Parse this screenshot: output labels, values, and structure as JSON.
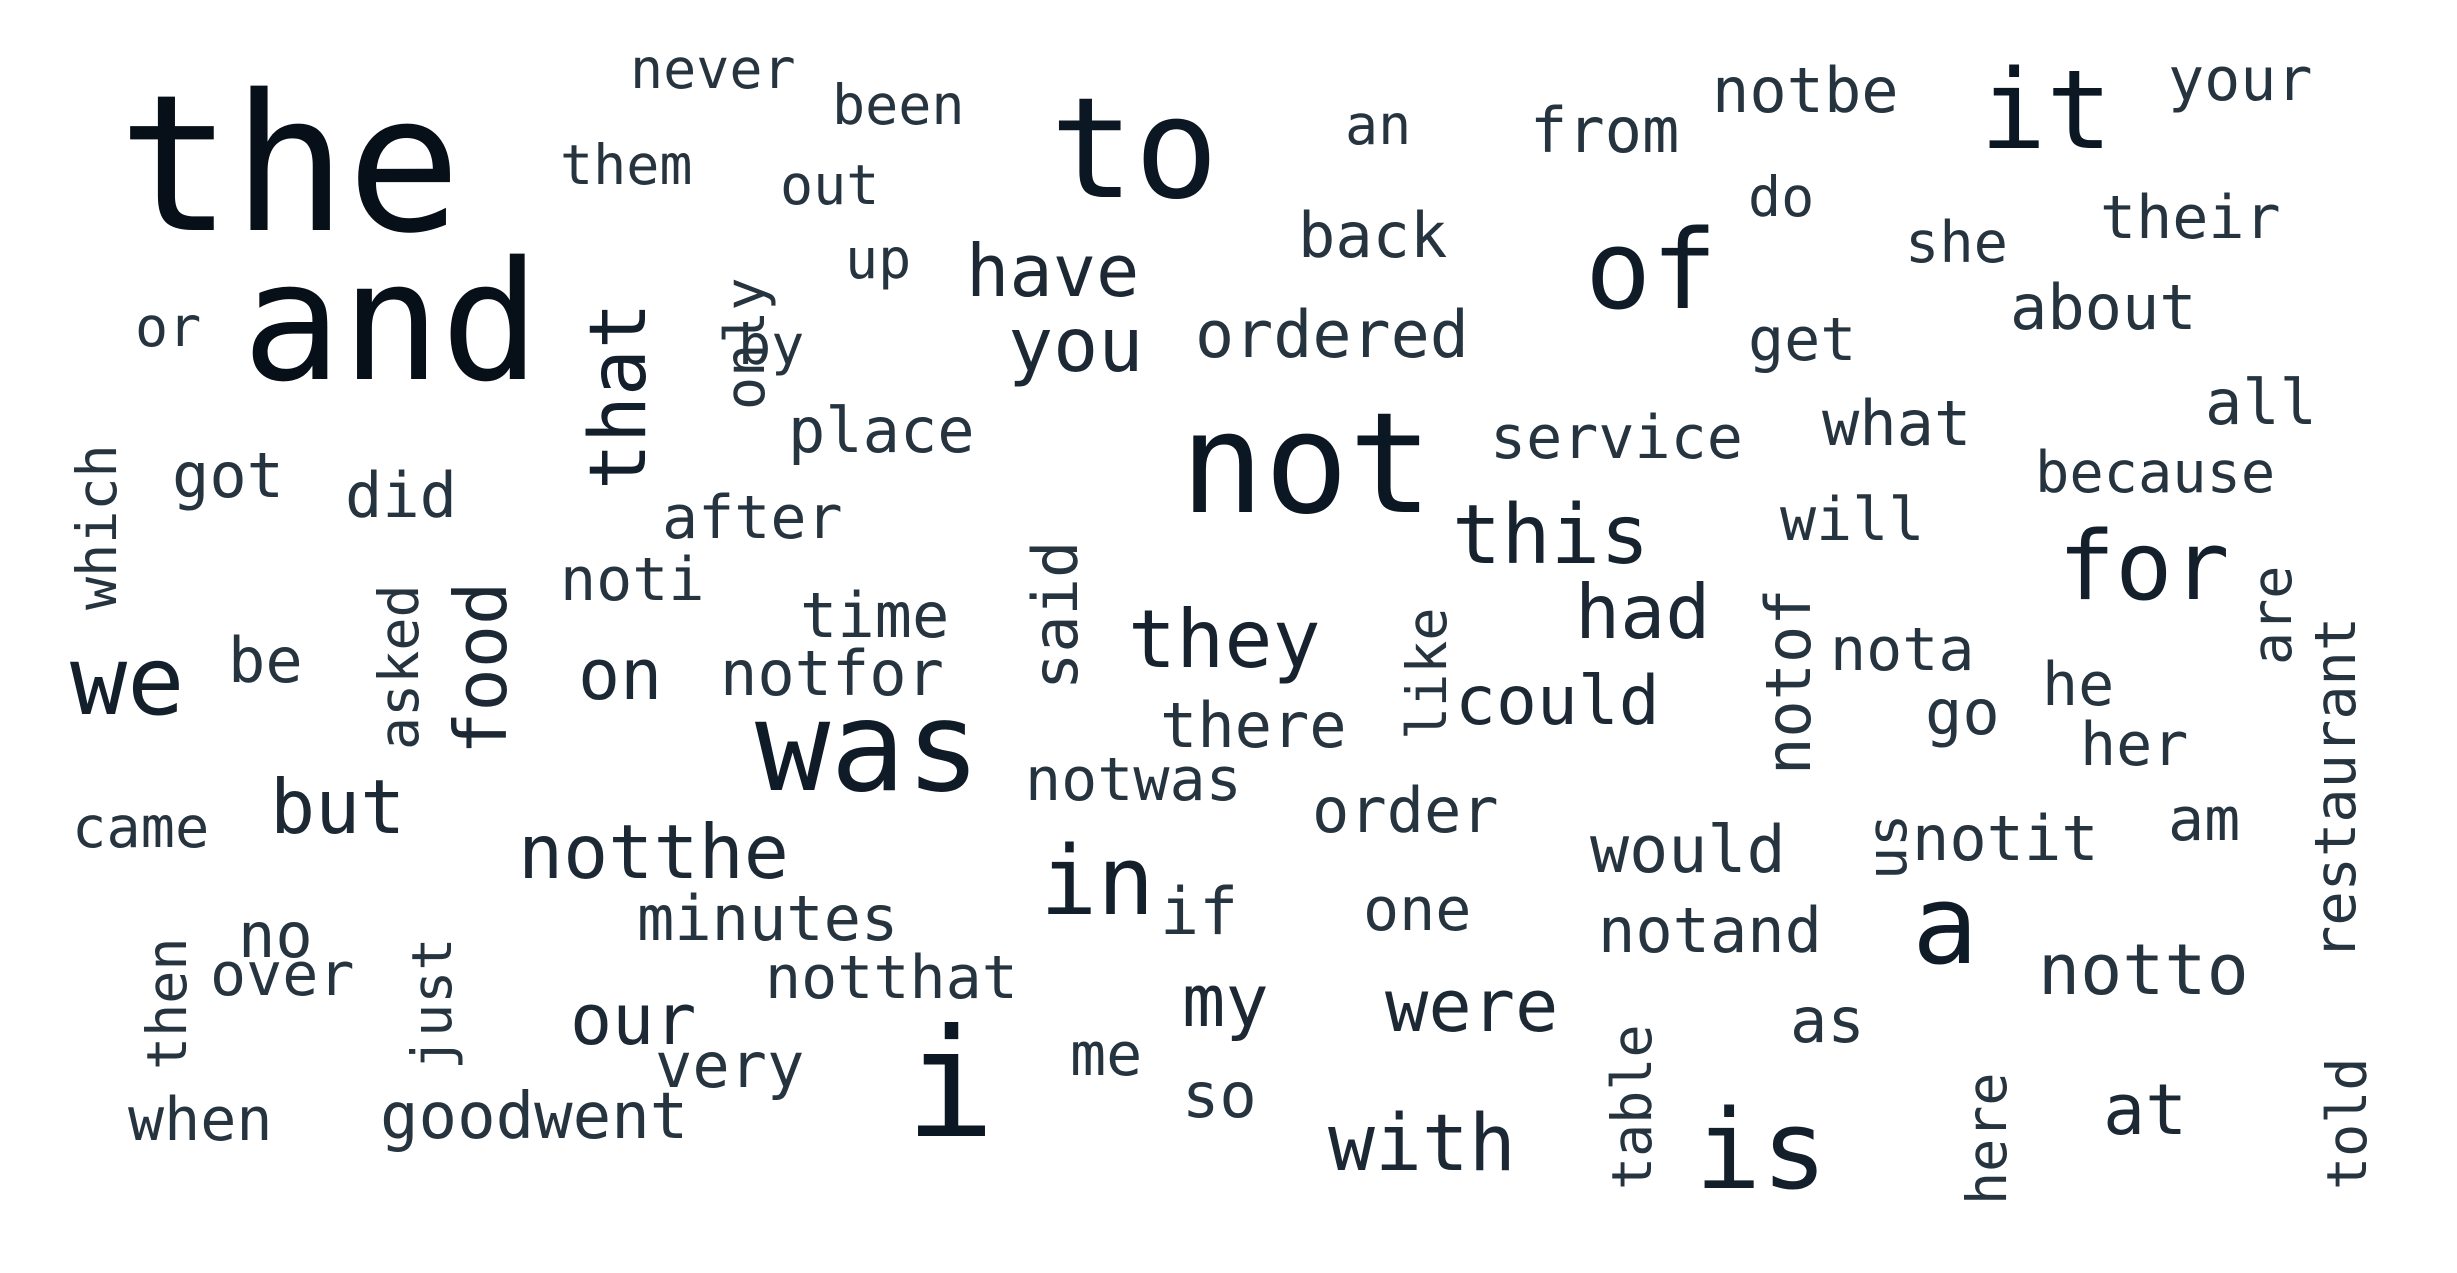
{
  "words": [
    {
      "text": "the",
      "color": "#070f18"
    },
    {
      "text": "and",
      "color": "#070f18"
    },
    {
      "text": "to",
      "color": "#0b1722"
    },
    {
      "text": "it",
      "color": "#0b1722"
    },
    {
      "text": "not",
      "color": "#0b1722"
    },
    {
      "text": "was",
      "color": "#0f1b27"
    },
    {
      "text": "i",
      "color": "#0b1722"
    },
    {
      "text": "a",
      "color": "#0f1b27"
    },
    {
      "text": "of",
      "color": "#0f1b27"
    },
    {
      "text": "in",
      "color": "#13202c"
    },
    {
      "text": "we",
      "color": "#13202c"
    },
    {
      "text": "is",
      "color": "#13202c"
    },
    {
      "text": "for",
      "color": "#13202c"
    },
    {
      "text": "that",
      "color": "#13202c"
    },
    {
      "text": "this",
      "color": "#16232f"
    },
    {
      "text": "they",
      "color": "#16232f"
    },
    {
      "text": "never",
      "color": "#26343f"
    },
    {
      "text": "been",
      "color": "#26343f"
    },
    {
      "text": "them",
      "color": "#26343f"
    },
    {
      "text": "out",
      "color": "#26343f"
    },
    {
      "text": "an",
      "color": "#26343f"
    },
    {
      "text": "from",
      "color": "#26343f"
    },
    {
      "text": "notbe",
      "color": "#26343f"
    },
    {
      "text": "your",
      "color": "#26343f"
    },
    {
      "text": "do",
      "color": "#26343f"
    },
    {
      "text": "back",
      "color": "#26343f"
    },
    {
      "text": "she",
      "color": "#26343f"
    },
    {
      "text": "their",
      "color": "#26343f"
    },
    {
      "text": "up",
      "color": "#26343f"
    },
    {
      "text": "have",
      "color": "#1c2935"
    },
    {
      "text": "only",
      "color": "#26343f"
    },
    {
      "text": "or",
      "color": "#26343f"
    },
    {
      "text": "by",
      "color": "#26343f"
    },
    {
      "text": "you",
      "color": "#1c2935"
    },
    {
      "text": "ordered",
      "color": "#26343f"
    },
    {
      "text": "get",
      "color": "#26343f"
    },
    {
      "text": "about",
      "color": "#26343f"
    },
    {
      "text": "which",
      "color": "#26343f"
    },
    {
      "text": "place",
      "color": "#26343f"
    },
    {
      "text": "service",
      "color": "#26343f"
    },
    {
      "text": "what",
      "color": "#26343f"
    },
    {
      "text": "all",
      "color": "#26343f"
    },
    {
      "text": "got",
      "color": "#26343f"
    },
    {
      "text": "because",
      "color": "#26343f"
    },
    {
      "text": "did",
      "color": "#26343f"
    },
    {
      "text": "after",
      "color": "#26343f"
    },
    {
      "text": "will",
      "color": "#26343f"
    },
    {
      "text": "asked",
      "color": "#26343f"
    },
    {
      "text": "food",
      "color": "#1c2935"
    },
    {
      "text": "noti",
      "color": "#26343f"
    },
    {
      "text": "said",
      "color": "#26343f"
    },
    {
      "text": "are",
      "color": "#26343f"
    },
    {
      "text": "restaurant",
      "color": "#26343f"
    },
    {
      "text": "had",
      "color": "#1c2935"
    },
    {
      "text": "notof",
      "color": "#26343f"
    },
    {
      "text": "time",
      "color": "#26343f"
    },
    {
      "text": "like",
      "color": "#26343f"
    },
    {
      "text": "nota",
      "color": "#26343f"
    },
    {
      "text": "be",
      "color": "#26343f"
    },
    {
      "text": "on",
      "color": "#1c2935"
    },
    {
      "text": "notfor",
      "color": "#26343f"
    },
    {
      "text": "could",
      "color": "#1c2935"
    },
    {
      "text": "he",
      "color": "#26343f"
    },
    {
      "text": "go",
      "color": "#26343f"
    },
    {
      "text": "there",
      "color": "#26343f"
    },
    {
      "text": "her",
      "color": "#26343f"
    },
    {
      "text": "notwas",
      "color": "#26343f"
    },
    {
      "text": "order",
      "color": "#26343f"
    },
    {
      "text": "came",
      "color": "#26343f"
    },
    {
      "text": "but",
      "color": "#1c2935"
    },
    {
      "text": "am",
      "color": "#26343f"
    },
    {
      "text": "us",
      "color": "#26343f"
    },
    {
      "text": "notit",
      "color": "#26343f"
    },
    {
      "text": "notthe",
      "color": "#1c2935"
    },
    {
      "text": "would",
      "color": "#26343f"
    },
    {
      "text": "then",
      "color": "#26343f"
    },
    {
      "text": "if",
      "color": "#26343f"
    },
    {
      "text": "one",
      "color": "#26343f"
    },
    {
      "text": "no",
      "color": "#26343f"
    },
    {
      "text": "just",
      "color": "#26343f"
    },
    {
      "text": "minutes",
      "color": "#26343f"
    },
    {
      "text": "notand",
      "color": "#26343f"
    },
    {
      "text": "over",
      "color": "#26343f"
    },
    {
      "text": "notthat",
      "color": "#26343f"
    },
    {
      "text": "notto",
      "color": "#26343f"
    },
    {
      "text": "my",
      "color": "#1c2935"
    },
    {
      "text": "were",
      "color": "#1c2935"
    },
    {
      "text": "table",
      "color": "#26343f"
    },
    {
      "text": "our",
      "color": "#1c2935"
    },
    {
      "text": "as",
      "color": "#26343f"
    },
    {
      "text": "very",
      "color": "#26343f"
    },
    {
      "text": "me",
      "color": "#26343f"
    },
    {
      "text": "here",
      "color": "#26343f"
    },
    {
      "text": "told",
      "color": "#26343f"
    },
    {
      "text": "so",
      "color": "#26343f"
    },
    {
      "text": "at",
      "color": "#1c2935"
    },
    {
      "text": "when",
      "color": "#26343f"
    },
    {
      "text": "goodwent",
      "color": "#26343f"
    },
    {
      "text": "with",
      "color": "#1c2935"
    }
  ]
}
